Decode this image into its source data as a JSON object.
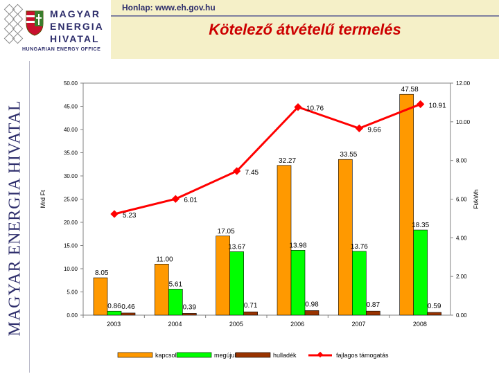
{
  "header": {
    "homepage": "Honlap: www.eh.gov.hu",
    "title": "Kötelező átvételű termelés",
    "logo_lines": [
      "MAGYAR",
      "ENERGIA",
      "HIVATAL"
    ],
    "logo_sub": "HUNGARIAN ENERGY OFFICE",
    "vertical_brand": "MAGYAR ENERGIA HIVATAL"
  },
  "colors": {
    "kapcsolt": "#ff9900",
    "megujulo": "#00ff00",
    "hulladek": "#993300",
    "fajlagos": "#ff0000",
    "title": "#cc0000",
    "header_bg": "#f5f0c8"
  },
  "chart_data": {
    "type": "bar",
    "categories": [
      "2003",
      "2004",
      "2005",
      "2006",
      "2007",
      "2008"
    ],
    "ylabel": "Mrd Ft",
    "y2label": "Ft/kWh",
    "ylim": [
      0,
      50
    ],
    "y2lim": [
      0,
      12
    ],
    "yticks": [
      "0.00",
      "5.00",
      "10.00",
      "15.00",
      "20.00",
      "25.00",
      "30.00",
      "35.00",
      "40.00",
      "45.00",
      "50.00"
    ],
    "y2ticks": [
      "0.00",
      "2.00",
      "4.00",
      "6.00",
      "8.00",
      "10.00",
      "12.00"
    ],
    "legend_position": "bottom",
    "series": [
      {
        "name": "kapcsolt",
        "axis": "left",
        "kind": "bar",
        "values": [
          8.05,
          11.0,
          17.05,
          32.27,
          33.55,
          47.58
        ],
        "labels": [
          "8.05",
          "11.00",
          "17.05",
          "32.27",
          "33.55",
          "47.58"
        ]
      },
      {
        "name": "megújuló",
        "axis": "left",
        "kind": "bar",
        "values": [
          0.86,
          5.61,
          13.67,
          13.98,
          13.76,
          18.35
        ],
        "labels": [
          "0.86",
          "5.61",
          "13.67",
          "13.98",
          "13.76",
          "18.35"
        ]
      },
      {
        "name": "hulladék",
        "axis": "left",
        "kind": "bar",
        "values": [
          0.46,
          0.39,
          0.71,
          0.98,
          0.87,
          0.59
        ],
        "labels": [
          "0.46",
          "0.39",
          "0.71",
          "0.98",
          "0.87",
          "0.59"
        ]
      },
      {
        "name": "fajlagos támogatás",
        "axis": "right",
        "kind": "line",
        "values": [
          5.23,
          6.01,
          7.45,
          10.76,
          9.66,
          10.91
        ],
        "labels": [
          "5.23",
          "6.01",
          "7.45",
          "10.76",
          "9.66",
          "10.91"
        ]
      }
    ]
  }
}
